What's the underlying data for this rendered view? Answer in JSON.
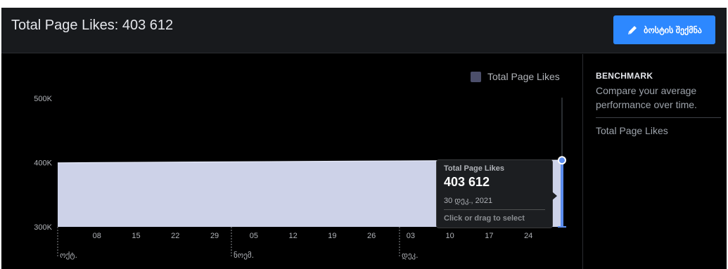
{
  "header": {
    "title": "Total Page Likes: 403 612",
    "promote_label": "ბოსტის შექმნა"
  },
  "benchmark": {
    "title": "BENCHMARK",
    "description": "Compare your average performance over time.",
    "item": "Total Page Likes"
  },
  "tooltip": {
    "label": "Total Page Likes",
    "value": "403 612",
    "date": "30 დეკ., 2021",
    "hint": "Click or drag to select"
  },
  "colors": {
    "area_fill": "#cdd2e8",
    "legend_swatch": "#4c4f6b",
    "selection": "#5b8def",
    "button": "#2d88ff"
  },
  "chart_data": {
    "type": "area",
    "series": [
      {
        "name": "Total Page Likes",
        "x": [
          "2021-10-01",
          "2021-10-15",
          "2021-11-01",
          "2021-11-15",
          "2021-12-01",
          "2021-12-15",
          "2021-12-30"
        ],
        "values": [
          399500,
          400300,
          401100,
          401800,
          402500,
          403100,
          403612
        ]
      }
    ],
    "x_range": [
      "2021-10-01",
      "2021-12-30"
    ],
    "ylim": [
      300000,
      500000
    ],
    "y_ticks": [
      {
        "value": 300000,
        "label": "300K"
      },
      {
        "value": 400000,
        "label": "400K"
      },
      {
        "value": 500000,
        "label": "500K"
      }
    ],
    "x_ticks": [
      {
        "date": "2021-10-08",
        "label": "08"
      },
      {
        "date": "2021-10-15",
        "label": "15"
      },
      {
        "date": "2021-10-22",
        "label": "22"
      },
      {
        "date": "2021-10-29",
        "label": "29"
      },
      {
        "date": "2021-11-05",
        "label": "05"
      },
      {
        "date": "2021-11-12",
        "label": "12"
      },
      {
        "date": "2021-11-19",
        "label": "19"
      },
      {
        "date": "2021-11-26",
        "label": "26"
      },
      {
        "date": "2021-12-03",
        "label": "03"
      },
      {
        "date": "2021-12-10",
        "label": "10"
      },
      {
        "date": "2021-12-17",
        "label": "17"
      },
      {
        "date": "2021-12-24",
        "label": "24"
      }
    ],
    "months": [
      {
        "date": "2021-10-01",
        "label": "ოქტ."
      },
      {
        "date": "2021-11-01",
        "label": "ნოემ."
      },
      {
        "date": "2021-12-01",
        "label": "დეკ."
      }
    ],
    "selected": {
      "date": "2021-12-30",
      "value": 403612
    },
    "legend": "top-right",
    "grid": false
  }
}
